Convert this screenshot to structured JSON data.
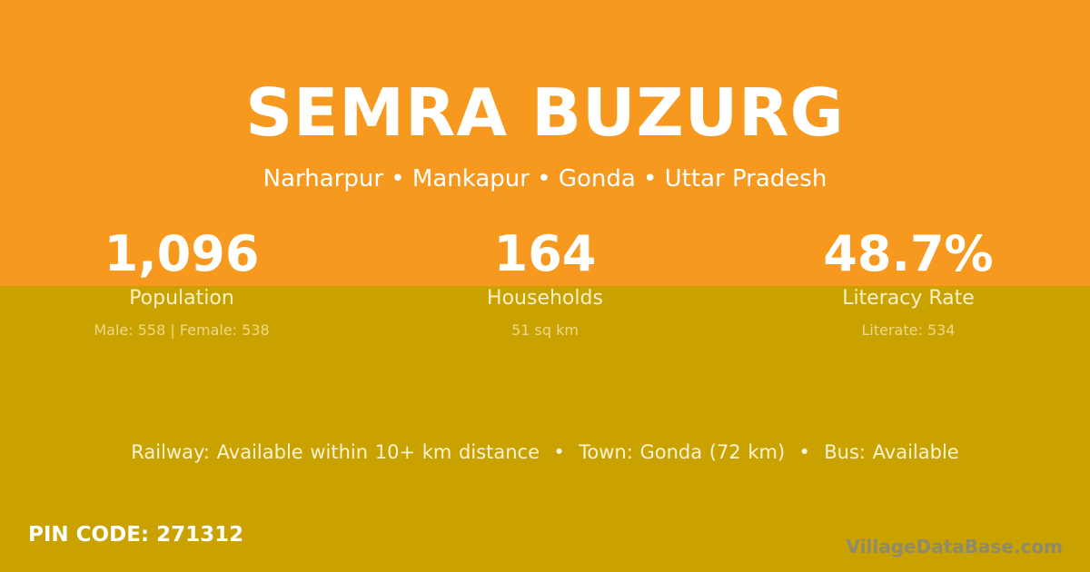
{
  "colors": {
    "top_bg": "#F8991F",
    "bottom_bg": "#C9A200"
  },
  "village": {
    "name": "SEMRA BUZURG",
    "location": "Narharpur • Mankapur • Gonda • Uttar Pradesh"
  },
  "stats": [
    {
      "value": "1,096",
      "label": "Population",
      "detail": "Male: 558 | Female: 538"
    },
    {
      "value": "164",
      "label": "Households",
      "detail": "51 sq km"
    },
    {
      "value": "48.7%",
      "label": "Literacy Rate",
      "detail": "Literate: 534"
    }
  ],
  "amenities": "Railway: Available within 10+ km distance  •  Town: Gonda (72 km)  •  Bus: Available",
  "pin_code": "PIN CODE: 271312",
  "brand": "VillageDataBase.com"
}
